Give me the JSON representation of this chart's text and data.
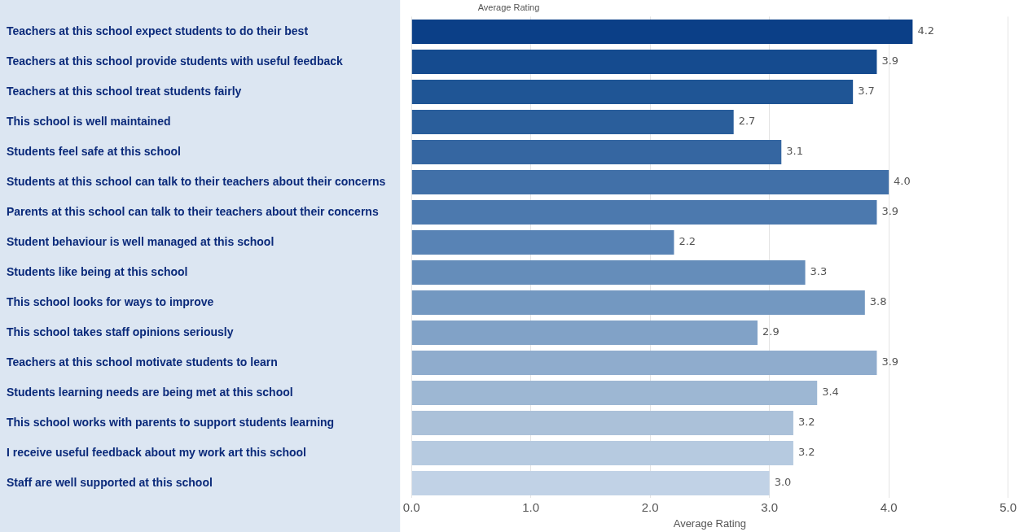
{
  "chart_data": {
    "type": "bar",
    "orientation": "horizontal",
    "title": "Average Rating",
    "xlabel": "Average Rating",
    "categories": [
      "Teachers at this school expect students to do their best",
      "Teachers at this school provide students with useful feedback",
      "Teachers at this school treat students fairly",
      "This school is well maintained",
      "Students feel safe at this school",
      "Students at this school can talk to their teachers about their concerns",
      "Parents at this school can talk to their teachers about their concerns",
      "Student behaviour is well managed at this school",
      "Students like being at this school",
      "This school looks for ways to improve",
      "This school takes staff opinions seriously",
      "Teachers at this school motivate students to learn",
      "Students learning needs are being met at this school",
      "This school works with parents to support students learning",
      "I receive useful feedback about my work art this school",
      "Staff are well supported at this school"
    ],
    "values": [
      4.2,
      3.9,
      3.7,
      2.7,
      3.1,
      4.0,
      3.9,
      2.2,
      3.3,
      3.8,
      2.9,
      3.9,
      3.4,
      3.2,
      3.2,
      3.0
    ],
    "colors": [
      "#0b3f87",
      "#154b8f",
      "#1f5595",
      "#2a5e9b",
      "#3566a1",
      "#4170a8",
      "#4c79ae",
      "#5883b5",
      "#658dba",
      "#7398c1",
      "#81a2c7",
      "#8faccd",
      "#9db7d3",
      "#abc1d9",
      "#b6cae0",
      "#c1d2e6"
    ],
    "value_labels": [
      "4.2",
      "3.9",
      "3.7",
      "2.7",
      "3.1",
      "4.0",
      "3.9",
      "2.2",
      "3.3",
      "3.8",
      "2.9",
      "3.9",
      "3.4",
      "3.2",
      "3.2",
      "3.0"
    ],
    "xlim": [
      0,
      5
    ],
    "xticks": [
      {
        "value": 0,
        "label": "0.0"
      },
      {
        "value": 1,
        "label": "1.0"
      },
      {
        "value": 2,
        "label": "2.0"
      },
      {
        "value": 3,
        "label": "3.0"
      },
      {
        "value": 4,
        "label": "4.0"
      },
      {
        "value": 5,
        "label": "5.0"
      }
    ],
    "grid": "x",
    "legend": false
  }
}
